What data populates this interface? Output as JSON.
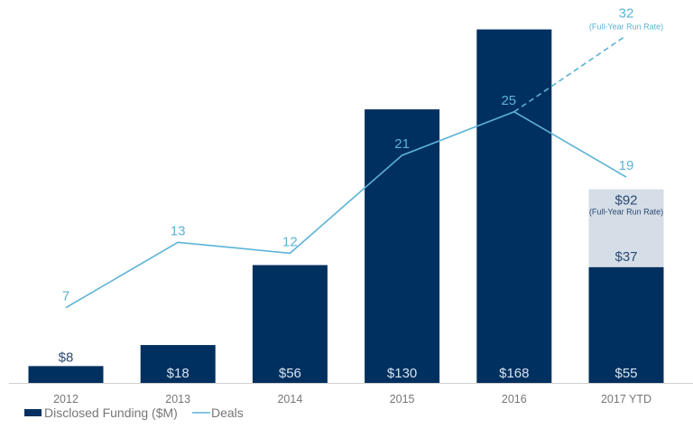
{
  "chart_data": {
    "type": "bar+line",
    "categories": [
      "2012",
      "2013",
      "2014",
      "2015",
      "2016",
      "2017 YTD"
    ],
    "series": [
      {
        "name": "Disclosed Funding ($M)",
        "type": "bar",
        "values": [
          8,
          18,
          56,
          130,
          168,
          55
        ],
        "labels": [
          "$8",
          "$18",
          "$56",
          "$130",
          "$168",
          "$55"
        ],
        "color": "#00305f"
      },
      {
        "name": "Deals",
        "type": "line",
        "values": [
          7,
          13,
          12,
          21,
          25,
          19
        ],
        "color": "#5bb3d6"
      }
    ],
    "run_rate": {
      "funding": {
        "category": "2017 YTD",
        "value": 92,
        "label": "$92",
        "remaining_label": "$37",
        "note": "(Full-Year Run Rate)",
        "color": "#d5dde6"
      },
      "deals": {
        "category": "2017 YTD",
        "value": 32,
        "label": "32",
        "note": "(Full-Year Run Rate)",
        "style": "dashed"
      }
    },
    "legend": {
      "position": "bottom-left",
      "items": [
        "Disclosed Funding ($M)",
        "Deals"
      ]
    },
    "grid": false
  }
}
